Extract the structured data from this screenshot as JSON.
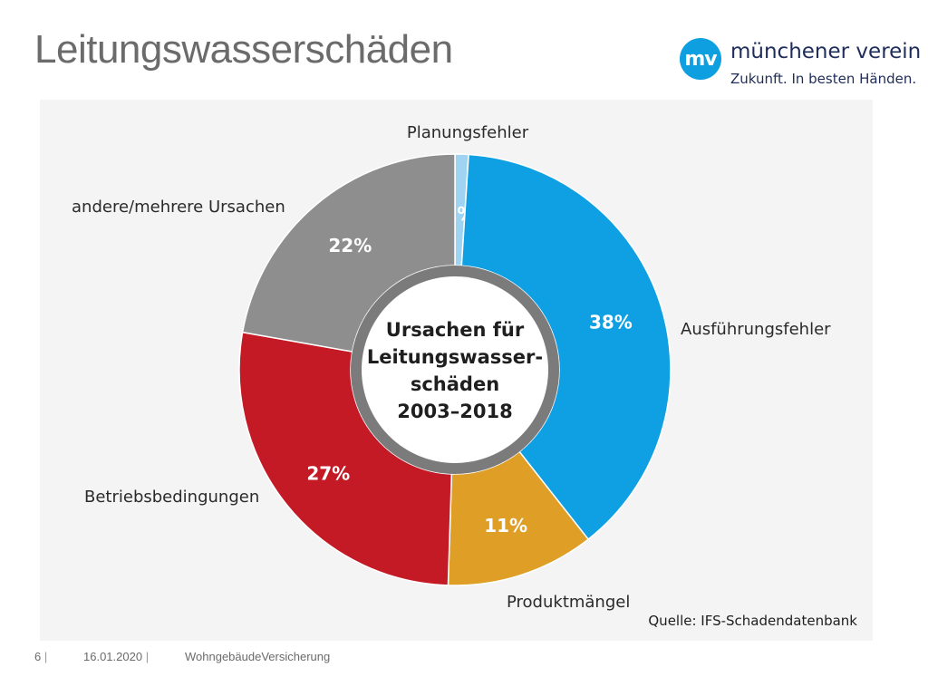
{
  "page": {
    "title": "Leitungswasserschäden"
  },
  "logo": {
    "mark": "mv",
    "name": "münchener verein",
    "slogan": "Zukunft. In besten Händen."
  },
  "chart_data": {
    "type": "pie",
    "donut": true,
    "center_label": [
      "Ursachen für",
      "Leitungswasser-",
      "schäden",
      "2003–2018"
    ],
    "series": [
      {
        "label": "Planungsfehler",
        "value": 1,
        "value_label": "1%",
        "color": "#9fd3f2"
      },
      {
        "label": "Ausführungsfehler",
        "value": 38,
        "value_label": "38%",
        "color": "#0ea0e2"
      },
      {
        "label": "Produktmängel",
        "value": 11,
        "value_label": "11%",
        "color": "#df9e26"
      },
      {
        "label": "Betriebsbedingungen",
        "value": 27,
        "value_label": "27%",
        "color": "#c41a26"
      },
      {
        "label": "andere/mehrere Ursachen",
        "value": 22,
        "value_label": "22%",
        "color": "#8e8e8e"
      }
    ],
    "source": "Quelle: IFS-Schadendatenbank"
  },
  "footer": {
    "page_number": "6",
    "date": "16.01.2020",
    "topic": "WohngebäudeVersicherung"
  }
}
